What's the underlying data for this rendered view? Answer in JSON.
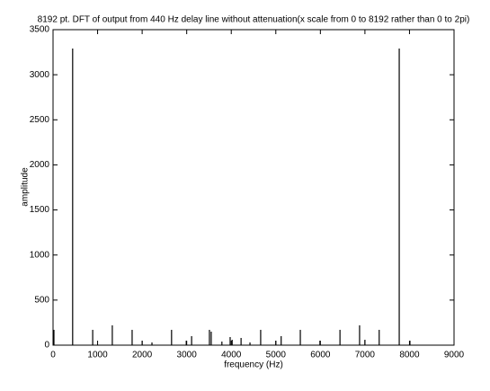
{
  "chart_data": {
    "type": "stem",
    "title": "8192 pt. DFT of output from 440 Hz delay line without attenuation(x scale from 0 to 8192 rather than 0 to 2pi)",
    "x_label": "frequency (Hz)",
    "y_label": "amplitude",
    "color": "#000000",
    "x": [
      20,
      440,
      890,
      1330,
      1775,
      2000,
      2220,
      2660,
      2990,
      3110,
      3510,
      3550,
      3790,
      3975,
      4020,
      4220,
      4420,
      4660,
      5000,
      5120,
      5550,
      5990,
      6440,
      6880,
      7000,
      7320,
      7770,
      8010
    ],
    "values": [
      170,
      3290,
      170,
      220,
      170,
      50,
      30,
      170,
      50,
      100,
      170,
      150,
      40,
      90,
      60,
      80,
      30,
      170,
      50,
      100,
      170,
      50,
      170,
      220,
      60,
      170,
      3290,
      50
    ],
    "xlim": [
      0,
      9000
    ],
    "xticks": [
      0,
      1000,
      2000,
      3000,
      4000,
      5000,
      6000,
      7000,
      8000,
      9000
    ],
    "ylim": [
      0,
      3500
    ],
    "yticks": [
      0,
      500,
      1000,
      1500,
      2000,
      2500,
      3000,
      3500
    ]
  }
}
